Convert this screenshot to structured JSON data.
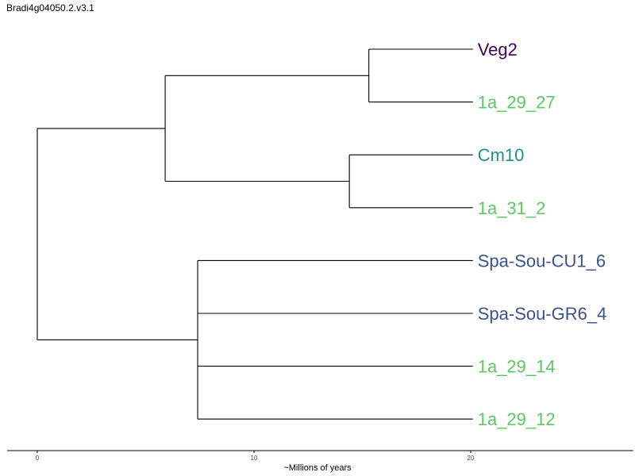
{
  "title": "Bradi4g04050.2.v3.1",
  "colors": {
    "branch": "#000000",
    "purple": "#440154",
    "teal": "#21908c",
    "blue": "#3b528b",
    "green": "#5dc863"
  },
  "tree": {
    "root_age": 0,
    "leaves": [
      {
        "name": "Veg2",
        "color": "#440154"
      },
      {
        "name": "1a_29_27",
        "color": "#5dc863"
      },
      {
        "name": "Cm10",
        "color": "#21908c"
      },
      {
        "name": "1a_31_2",
        "color": "#5dc863"
      },
      {
        "name": "Spa-Sou-CU1_6",
        "color": "#3b528b"
      },
      {
        "name": "Spa-Sou-GR6_4",
        "color": "#3b528b"
      },
      {
        "name": "1a_29_14",
        "color": "#5dc863"
      },
      {
        "name": "1a_29_12",
        "color": "#5dc863"
      }
    ],
    "nodes": [
      {
        "id": "root",
        "depth": 0.0,
        "children": [
          "A",
          "B"
        ]
      },
      {
        "id": "A",
        "depth": 5.9,
        "children": [
          "A1",
          "A2"
        ]
      },
      {
        "id": "A1",
        "depth": 15.3,
        "children": [
          "Veg2",
          "1a_29_27"
        ]
      },
      {
        "id": "A2",
        "depth": 14.4,
        "children": [
          "Cm10",
          "1a_31_2"
        ]
      },
      {
        "id": "B",
        "depth": 7.4,
        "children": [
          "Spa-Sou-CU1_6",
          "Spa-Sou-GR6_4",
          "1a_29_14",
          "1a_29_12"
        ]
      }
    ],
    "leaf_depth": 20.1
  },
  "axis": {
    "label": "~Millions of years",
    "ticks": [
      0,
      10,
      20
    ],
    "range": [
      -1.4,
      27.5
    ]
  }
}
